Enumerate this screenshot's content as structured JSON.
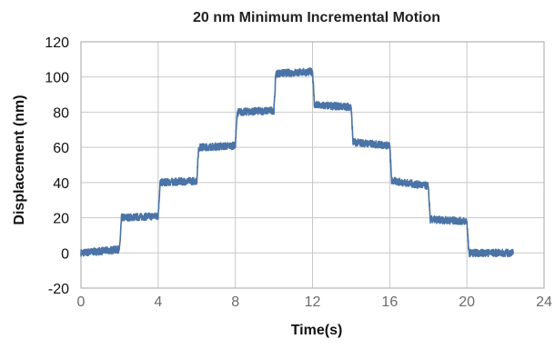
{
  "chart_data": {
    "type": "line",
    "title": "20 nm Minimum Incremental Motion",
    "xlabel": "Time(s)",
    "ylabel": "Displacement (nm)",
    "xlim": [
      0,
      24
    ],
    "ylim": [
      -20,
      120
    ],
    "xticks": [
      0,
      4,
      8,
      12,
      16,
      20,
      24
    ],
    "yticks": [
      -20,
      0,
      20,
      40,
      60,
      80,
      100,
      120
    ],
    "xtick_labels": [
      "0",
      "4",
      "8",
      "12",
      "16",
      "20",
      "24"
    ],
    "ytick_labels": [
      "-20",
      "0",
      "20",
      "40",
      "60",
      "80",
      "100",
      "120"
    ],
    "grid": true,
    "legend": "none",
    "series_color": "#4a73a6",
    "series": [
      {
        "x": [
          0,
          2,
          2.1,
          4,
          4.1,
          6,
          6.1,
          8,
          8.1,
          10,
          10.1,
          12,
          12.1,
          14,
          14.1,
          16,
          16.1,
          18,
          18.1,
          20,
          20.1,
          22.4
        ],
        "y": [
          0,
          2,
          20,
          21,
          40,
          41,
          60,
          61,
          80,
          81,
          102,
          103,
          84,
          83,
          63,
          61,
          41,
          38,
          19,
          18,
          0,
          0
        ]
      }
    ]
  }
}
